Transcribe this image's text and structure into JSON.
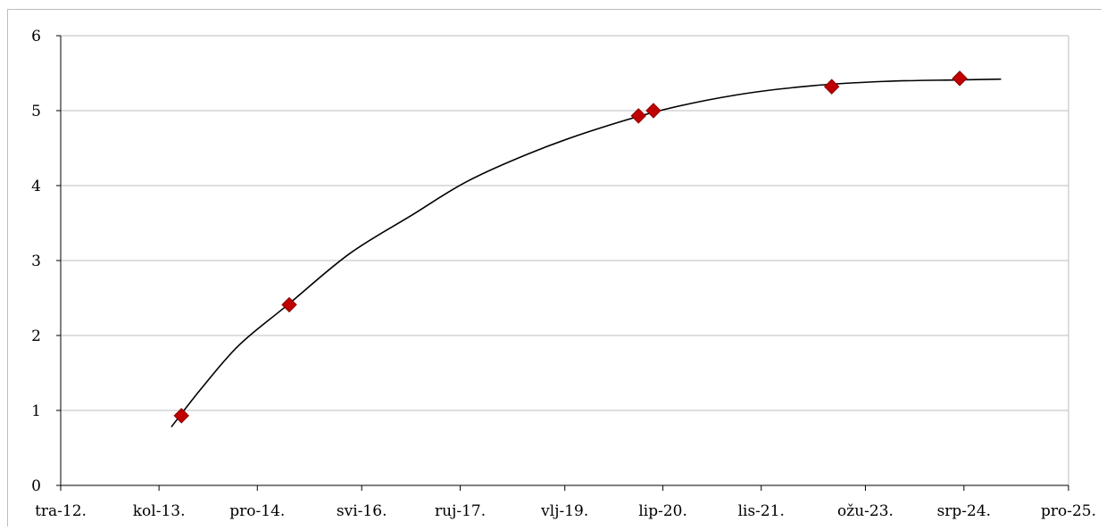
{
  "chart_data": {
    "type": "scatter",
    "title": "",
    "xlabel": "",
    "ylabel": "",
    "x_axis_type": "date",
    "xlim": [
      "2012-04-01",
      "2025-12-01"
    ],
    "ylim": [
      0,
      6
    ],
    "grid": true,
    "legend": "none",
    "x_ticks": [
      {
        "date": "2012-04-01",
        "label": "tra-12."
      },
      {
        "date": "2013-08-01",
        "label": "kol-13."
      },
      {
        "date": "2014-12-01",
        "label": "pro-14."
      },
      {
        "date": "2016-05-01",
        "label": "svi-16."
      },
      {
        "date": "2017-09-01",
        "label": "ruj-17."
      },
      {
        "date": "2019-02-01",
        "label": "vlj-19."
      },
      {
        "date": "2020-06-01",
        "label": "lip-20."
      },
      {
        "date": "2021-10-01",
        "label": "lis-21."
      },
      {
        "date": "2023-03-01",
        "label": "ožu-23."
      },
      {
        "date": "2024-07-01",
        "label": "srp-24."
      },
      {
        "date": "2025-12-01",
        "label": "pro-25."
      }
    ],
    "y_ticks": [
      {
        "value": 0,
        "label": "0"
      },
      {
        "value": 1,
        "label": "1"
      },
      {
        "value": 2,
        "label": "2"
      },
      {
        "value": 3,
        "label": "3"
      },
      {
        "value": 4,
        "label": "4"
      },
      {
        "value": 5,
        "label": "5"
      },
      {
        "value": 6,
        "label": "6"
      }
    ],
    "series": [
      {
        "type": "scatter",
        "marker": "diamond",
        "color": "#c00000",
        "points": [
          {
            "x": "2013-11-20",
            "y": 0.93
          },
          {
            "x": "2015-05-08",
            "y": 2.41
          },
          {
            "x": "2020-02-01",
            "y": 4.93
          },
          {
            "x": "2020-04-15",
            "y": 5.0
          },
          {
            "x": "2022-09-15",
            "y": 5.32
          },
          {
            "x": "2024-06-10",
            "y": 5.43
          }
        ]
      },
      {
        "type": "line",
        "role": "trendline",
        "color": "#000000",
        "points": [
          {
            "x": "2013-10-01",
            "y": 0.78
          },
          {
            "x": "2014-03-01",
            "y": 1.3
          },
          {
            "x": "2014-09-01",
            "y": 1.87
          },
          {
            "x": "2015-05-01",
            "y": 2.41
          },
          {
            "x": "2016-03-01",
            "y": 3.09
          },
          {
            "x": "2017-01-01",
            "y": 3.6
          },
          {
            "x": "2017-10-01",
            "y": 4.05
          },
          {
            "x": "2018-08-01",
            "y": 4.42
          },
          {
            "x": "2019-06-01",
            "y": 4.72
          },
          {
            "x": "2020-06-01",
            "y": 5.01
          },
          {
            "x": "2021-06-01",
            "y": 5.21
          },
          {
            "x": "2022-06-01",
            "y": 5.33
          },
          {
            "x": "2023-06-01",
            "y": 5.39
          },
          {
            "x": "2024-06-01",
            "y": 5.41
          },
          {
            "x": "2025-01-01",
            "y": 5.42
          }
        ]
      }
    ]
  }
}
